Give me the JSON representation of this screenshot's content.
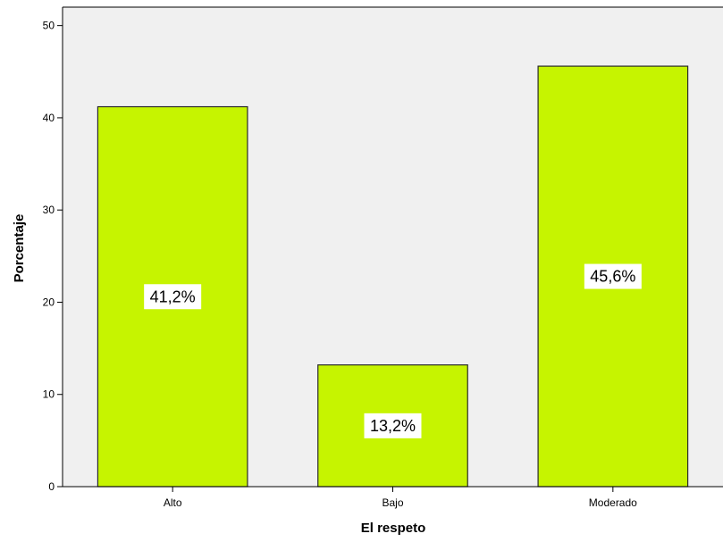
{
  "chart_data": {
    "type": "bar",
    "categories": [
      "Alto",
      "Bajo",
      "Moderado"
    ],
    "values": [
      41.2,
      13.2,
      45.6
    ],
    "data_labels": [
      "41,2%",
      "13,2%",
      "45,6%"
    ],
    "xlabel": "El respeto",
    "ylabel": "Porcentaje",
    "ylim": [
      0,
      52
    ],
    "yticks": [
      0,
      10,
      20,
      30,
      40,
      50
    ],
    "colors": {
      "bar_fill": "#c6f400",
      "bar_stroke": "#2a2a2a",
      "plot_background": "#f0f0f0",
      "axis": "#000000"
    },
    "grid": false
  }
}
